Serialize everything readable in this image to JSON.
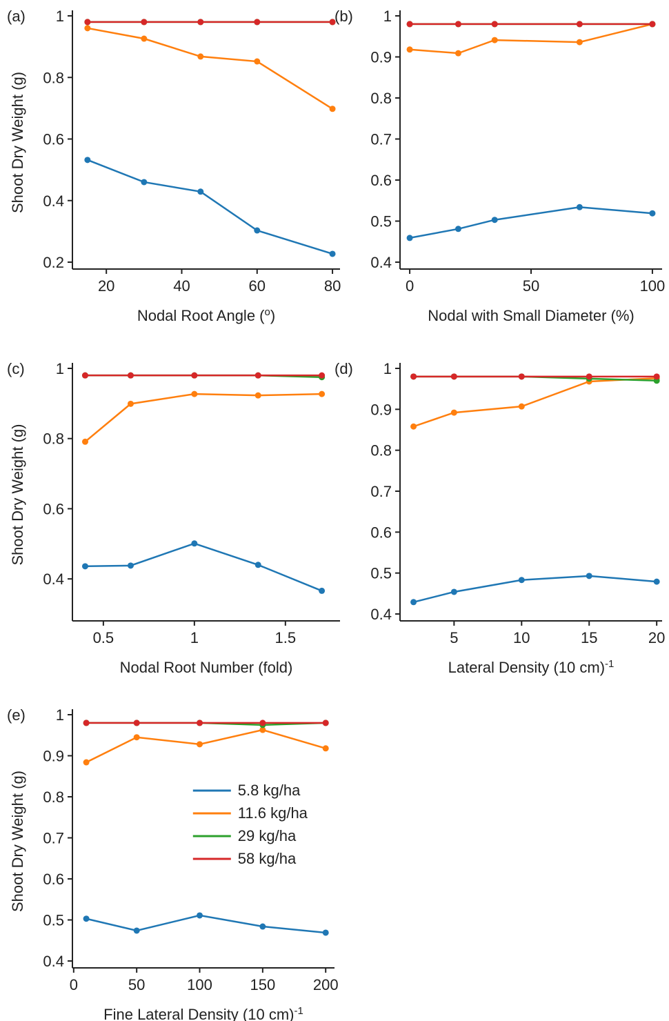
{
  "chart_data": [
    {
      "type": "line",
      "title": "(a)",
      "xlabel": [
        "Nodal Root Angle (",
        "o",
        ")"
      ],
      "ylabel": "Shoot Dry Weight (g)",
      "x": [
        15,
        30,
        45,
        60,
        80
      ],
      "xlim": [
        11,
        82
      ],
      "xticks": [
        20,
        40,
        60,
        80
      ],
      "ylim": [
        0.2,
        1
      ],
      "yticks": [
        0.2,
        0.4,
        0.6,
        0.8,
        1
      ],
      "series": [
        {
          "name": "5.8 kg/ha",
          "color": "#1f77b4",
          "values": [
            0.532,
            0.46,
            0.429,
            0.303,
            0.227
          ]
        },
        {
          "name": "11.6 kg/ha",
          "color": "#ff7f0e",
          "values": [
            0.96,
            0.926,
            0.868,
            0.852,
            0.698
          ]
        },
        {
          "name": "29 kg/ha",
          "color": "#2ca02c",
          "values": [
            0.98,
            0.98,
            0.98,
            0.98,
            0.98
          ]
        },
        {
          "name": "58 kg/ha",
          "color": "#d62728",
          "values": [
            0.98,
            0.98,
            0.98,
            0.98,
            0.98
          ]
        }
      ]
    },
    {
      "type": "line",
      "title": "(b)",
      "xlabel": [
        "Nodal with Small Diameter (%)"
      ],
      "x": [
        0,
        20,
        35,
        70,
        100
      ],
      "xlim": [
        -4,
        104
      ],
      "xticks": [
        0,
        50,
        100
      ],
      "ylim": [
        0.4,
        1
      ],
      "yticks": [
        0.4,
        0.5,
        0.6,
        0.7,
        0.8,
        0.9,
        1
      ],
      "series": [
        {
          "name": "5.8 kg/ha",
          "color": "#1f77b4",
          "values": [
            0.459,
            0.481,
            0.503,
            0.534,
            0.519
          ]
        },
        {
          "name": "11.6 kg/ha",
          "color": "#ff7f0e",
          "values": [
            0.918,
            0.909,
            0.941,
            0.936,
            0.98
          ]
        },
        {
          "name": "29 kg/ha",
          "color": "#2ca02c",
          "values": [
            0.98,
            0.98,
            0.98,
            0.98,
            0.98
          ]
        },
        {
          "name": "58 kg/ha",
          "color": "#d62728",
          "values": [
            0.98,
            0.98,
            0.98,
            0.98,
            0.98
          ]
        }
      ]
    },
    {
      "type": "line",
      "title": "(c)",
      "xlabel": [
        "Nodal Root Number (fold)"
      ],
      "ylabel": "Shoot Dry Weight (g)",
      "x": [
        0.4,
        0.65,
        1,
        1.35,
        1.7
      ],
      "xlim": [
        0.33,
        1.8
      ],
      "xticks": [
        0.5,
        1,
        1.5
      ],
      "ylim": [
        0.3,
        1
      ],
      "yticks": [
        0.4,
        0.6,
        0.8,
        1
      ],
      "series": [
        {
          "name": "5.8 kg/ha",
          "color": "#1f77b4",
          "values": [
            0.436,
            0.438,
            0.501,
            0.44,
            0.366
          ]
        },
        {
          "name": "11.6 kg/ha",
          "color": "#ff7f0e",
          "values": [
            0.791,
            0.899,
            0.927,
            0.923,
            0.927
          ]
        },
        {
          "name": "29 kg/ha",
          "color": "#2ca02c",
          "values": [
            0.98,
            0.98,
            0.98,
            0.98,
            0.975
          ]
        },
        {
          "name": "58 kg/ha",
          "color": "#d62728",
          "values": [
            0.98,
            0.98,
            0.98,
            0.98,
            0.98
          ]
        }
      ]
    },
    {
      "type": "line",
      "title": "(d)",
      "xlabel": [
        "Lateral Density (10 cm)",
        "-1"
      ],
      "x": [
        2,
        5,
        10,
        15,
        20
      ],
      "xlim": [
        1,
        20.4
      ],
      "xticks": [
        5,
        10,
        15,
        20
      ],
      "ylim": [
        0.4,
        1
      ],
      "yticks": [
        0.4,
        0.5,
        0.6,
        0.7,
        0.8,
        0.9,
        1
      ],
      "series": [
        {
          "name": "5.8 kg/ha",
          "color": "#1f77b4",
          "values": [
            0.429,
            0.454,
            0.483,
            0.493,
            0.479
          ]
        },
        {
          "name": "11.6 kg/ha",
          "color": "#ff7f0e",
          "values": [
            0.858,
            0.892,
            0.907,
            0.968,
            0.976
          ]
        },
        {
          "name": "29 kg/ha",
          "color": "#2ca02c",
          "values": [
            0.98,
            0.98,
            0.98,
            0.975,
            0.97
          ]
        },
        {
          "name": "58 kg/ha",
          "color": "#d62728",
          "values": [
            0.98,
            0.98,
            0.98,
            0.98,
            0.98
          ]
        }
      ]
    },
    {
      "type": "line",
      "title": "(e)",
      "xlabel": [
        "Fine Lateral Density (10 cm)",
        "-1"
      ],
      "ylabel": "Shoot Dry Weight (g)",
      "x": [
        10,
        50,
        100,
        150,
        200
      ],
      "xlim": [
        -1,
        207
      ],
      "xticks": [
        0,
        50,
        100,
        150,
        200
      ],
      "ylim": [
        0.4,
        1
      ],
      "yticks": [
        0.4,
        0.5,
        0.6,
        0.7,
        0.8,
        0.9,
        1
      ],
      "legend": "center",
      "series": [
        {
          "name": "5.8 kg/ha",
          "color": "#1f77b4",
          "values": [
            0.503,
            0.474,
            0.511,
            0.484,
            0.469
          ]
        },
        {
          "name": "11.6 kg/ha",
          "color": "#ff7f0e",
          "values": [
            0.884,
            0.945,
            0.928,
            0.963,
            0.918
          ]
        },
        {
          "name": "29 kg/ha",
          "color": "#2ca02c",
          "values": [
            0.98,
            0.98,
            0.98,
            0.975,
            0.98
          ]
        },
        {
          "name": "58 kg/ha",
          "color": "#d62728",
          "values": [
            0.98,
            0.98,
            0.98,
            0.98,
            0.98
          ]
        }
      ]
    }
  ]
}
